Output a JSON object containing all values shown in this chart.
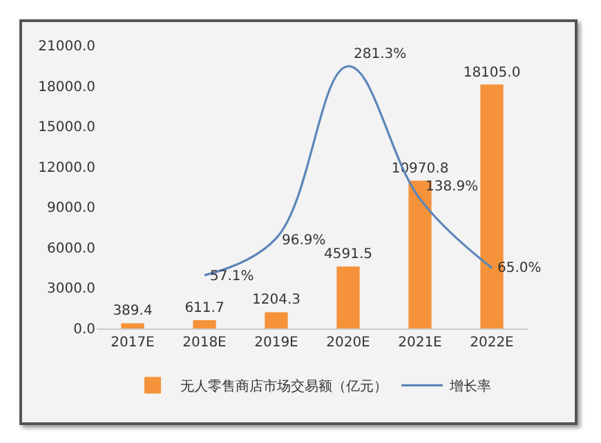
{
  "chart_data": {
    "type": "bar",
    "categories": [
      "2017E",
      "2018E",
      "2019E",
      "2020E",
      "2021E",
      "2022E"
    ],
    "series": [
      {
        "name": "无人零售商店市场交易额（亿元）",
        "color": "#f5923a",
        "values": [
          389.4,
          611.7,
          1204.3,
          4591.5,
          10970.8,
          18105.0
        ],
        "value_labels": [
          "389.4",
          "611.7",
          "1204.3",
          "4591.5",
          "10970.8",
          "18105.0"
        ]
      },
      {
        "name": "增长率",
        "type": "line",
        "axis": "y2",
        "color": "#5b86b8",
        "values": [
          null,
          57.1,
          96.9,
          281.3,
          138.9,
          65.0
        ],
        "value_labels": [
          null,
          "57.1%",
          "96.9%",
          "281.3%",
          "138.9%",
          "65.0%"
        ]
      }
    ],
    "ylim": [
      0,
      21000
    ],
    "yticks": [
      {
        "value": 0,
        "label": "0.0"
      },
      {
        "value": 3000,
        "label": "3000.0"
      },
      {
        "value": 6000,
        "label": "6000.0"
      },
      {
        "value": 9000,
        "label": "9000.0"
      },
      {
        "value": 12000,
        "label": "12000.0"
      },
      {
        "value": 15000,
        "label": "15000.0"
      },
      {
        "value": 18000,
        "label": "18000.0"
      },
      {
        "value": 21000,
        "label": "21000.0"
      }
    ],
    "grid": false,
    "legend": "bottom",
    "marker": "none",
    "line_style": "solid"
  }
}
